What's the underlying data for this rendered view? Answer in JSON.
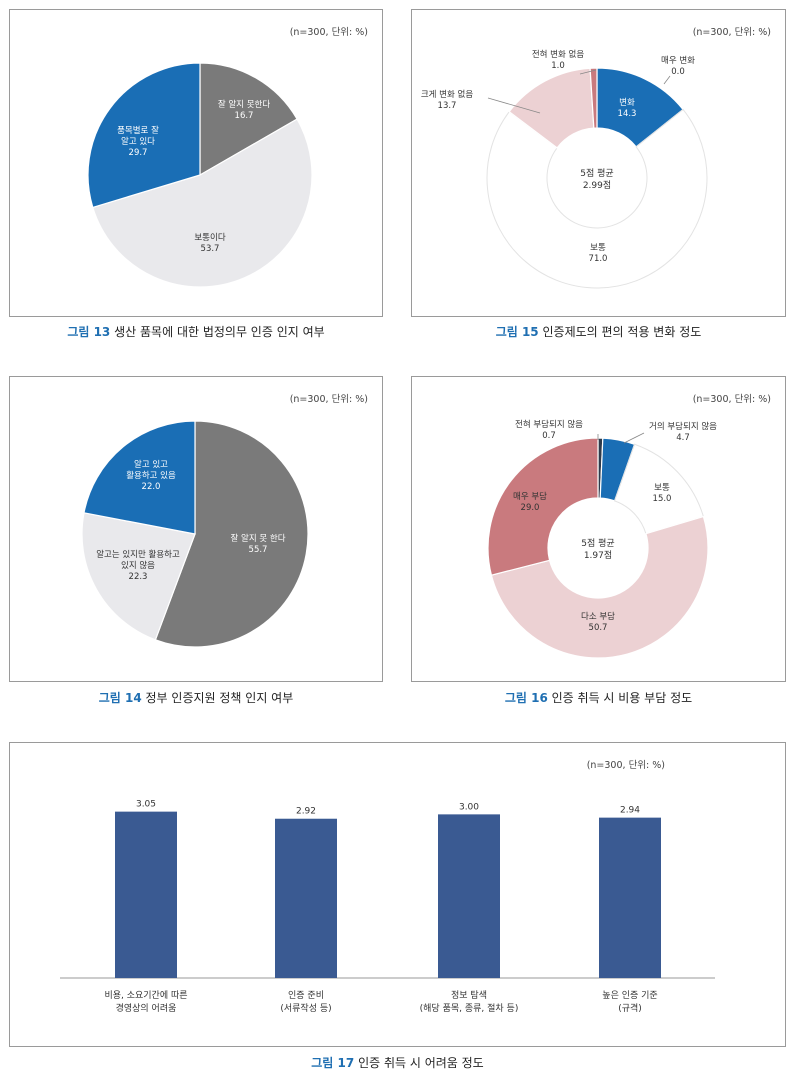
{
  "colors": {
    "blue": "#1a6eb5",
    "gray": "#7a7a7a",
    "light_gray": "#e9e9ec",
    "pink": "#ecd1d3",
    "rose": "#c97a7e",
    "white": "#ffffff",
    "dark": "#2e3a4a",
    "bar_blue": "#3a5a92"
  },
  "chart_data": [
    {
      "id": "fig13",
      "type": "pie",
      "caption_prefix": "그림 13",
      "caption_text": "생산 품목에 대한 법정의무 인증 인지 여부",
      "note": "(n=300, 단위: %)",
      "slices": [
        {
          "label": "잘 알지 못한다",
          "value": 16.7,
          "value_text": "16.7",
          "color": "#7a7a7a"
        },
        {
          "label": "보통이다",
          "value": 53.7,
          "value_text": "53.7",
          "color": "#e9e9ec"
        },
        {
          "label": "품목별로 잘 알고 있다",
          "value": 29.7,
          "value_text": "29.7",
          "color": "#1a6eb5"
        }
      ]
    },
    {
      "id": "fig15",
      "type": "pie",
      "donut": true,
      "caption_prefix": "그림 15",
      "caption_text": "인증제도의 편의 적용 변화 정도",
      "note": "(n=300, 단위: %)",
      "center_lines": [
        "5점 평균",
        "2.99점"
      ],
      "slices": [
        {
          "label": "매우 변화",
          "value": 0.0,
          "value_text": "0.0",
          "color": "#2e3a4a"
        },
        {
          "label": "변화",
          "value": 14.3,
          "value_text": "14.3",
          "color": "#1a6eb5"
        },
        {
          "label": "보통",
          "value": 71.0,
          "value_text": "71.0",
          "color": "#ffffff"
        },
        {
          "label": "크게 변화 없음",
          "value": 13.7,
          "value_text": "13.7",
          "color": "#ecd1d3"
        },
        {
          "label": "전혀 변화 없음",
          "value": 1.0,
          "value_text": "1.0",
          "color": "#c97a7e"
        }
      ]
    },
    {
      "id": "fig14",
      "type": "pie",
      "caption_prefix": "그림 14",
      "caption_text": "정부 인증지원 정책 인지 여부",
      "note": "(n=300, 단위: %)",
      "slices": [
        {
          "label": "잘 알지 못 한다",
          "value": 55.7,
          "value_text": "55.7",
          "color": "#7a7a7a"
        },
        {
          "label": "알고는 있지만 활용하고 있지 않음",
          "value": 22.3,
          "value_text": "22.3",
          "color": "#e9e9ec"
        },
        {
          "label": "알고 있고 활용하고 있음",
          "value": 22.0,
          "value_text": "22.0",
          "color": "#1a6eb5"
        }
      ]
    },
    {
      "id": "fig16",
      "type": "pie",
      "donut": true,
      "caption_prefix": "그림 16",
      "caption_text": "인증 취득 시 비용 부담 정도",
      "note": "(n=300, 단위: %)",
      "center_lines": [
        "5점 평균",
        "1.97점"
      ],
      "slices": [
        {
          "label": "전혀 부담되지 않음",
          "value": 0.7,
          "value_text": "0.7",
          "color": "#2e3a4a"
        },
        {
          "label": "거의 부담되지 않음",
          "value": 4.7,
          "value_text": "4.7",
          "color": "#1a6eb5"
        },
        {
          "label": "보통",
          "value": 15.0,
          "value_text": "15.0",
          "color": "#ffffff"
        },
        {
          "label": "다소 부담",
          "value": 50.7,
          "value_text": "50.7",
          "color": "#ecd1d3"
        },
        {
          "label": "매우 부담",
          "value": 29.0,
          "value_text": "29.0",
          "color": "#c97a7e"
        }
      ]
    },
    {
      "id": "fig17",
      "type": "bar",
      "caption_prefix": "그림 17",
      "caption_text": "인증 취득 시 어려움 정도",
      "note": "(n=300, 단위: %)",
      "categories": [
        [
          "비용, 소요기간에 따른",
          "경영상의 어려움"
        ],
        [
          "인증 준비",
          "(서류작성 등)"
        ],
        [
          "정보 탐색",
          "(해당 품목, 종류, 절차 등)"
        ],
        [
          "높은 인증 기준",
          "(규격)"
        ]
      ],
      "values": [
        3.05,
        2.92,
        3.0,
        2.94
      ],
      "value_labels": [
        "3.05",
        "2.92",
        "3.00",
        "2.94"
      ],
      "color": "#3a5a92"
    }
  ]
}
